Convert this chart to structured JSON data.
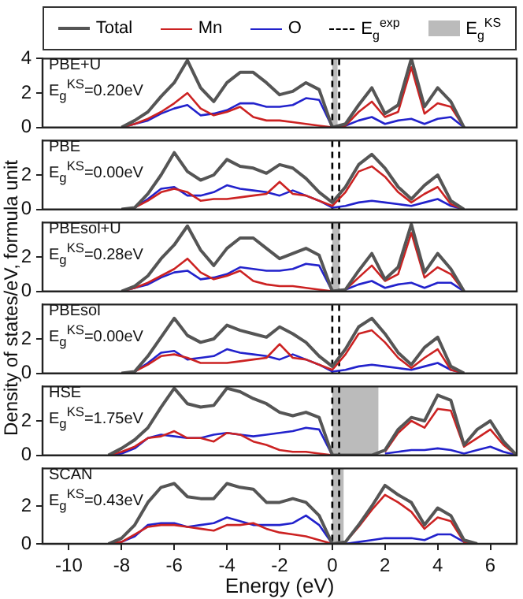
{
  "chart_data": [
    {
      "type": "line",
      "title": "PBE+U",
      "annotations": [
        "E$_{g}$$^{KS}$=0.20eV"
      ],
      "ylabel": "Density of states/eV, formula unit",
      "legend": "top",
      "tick_labels": "y",
      "grid": false,
      "marker": "none",
      "xlim": [
        -11,
        7
      ],
      "xticks": [
        -10,
        -8,
        -6,
        -4,
        -2,
        0,
        2,
        4,
        6
      ],
      "ylim": [
        0,
        4
      ],
      "yticks": [
        0,
        2,
        4
      ],
      "x": [
        -8,
        -7.5,
        -7,
        -6.5,
        -6,
        -5.5,
        -5,
        -4.5,
        -4,
        -3.5,
        -3,
        -2.5,
        -2,
        -1.5,
        -1,
        -0.5,
        0,
        0.5,
        1,
        1.5,
        2,
        2.5,
        3,
        3.5,
        4,
        4.5,
        5
      ],
      "series": [
        {
          "name": "Total",
          "color": "#555555",
          "values": [
            0,
            0.4,
            0.9,
            1.8,
            2.6,
            3.9,
            2.3,
            1.5,
            2.6,
            3.2,
            3.2,
            2.6,
            1.9,
            2.1,
            2.6,
            2.2,
            0,
            0.2,
            1.3,
            2.3,
            0.8,
            1.3,
            4.0,
            1.2,
            2.3,
            1.5,
            0
          ]
        },
        {
          "name": "Mn",
          "color": "#cc2222",
          "values": [
            0,
            0.2,
            0.5,
            0.9,
            1.4,
            2.0,
            1.1,
            0.7,
            0.9,
            1.2,
            0.6,
            0.4,
            0.4,
            0.3,
            0.2,
            0.1,
            0,
            0.1,
            0.9,
            1.5,
            0.6,
            0.9,
            3.5,
            0.8,
            1.4,
            1.2,
            0
          ]
        },
        {
          "name": "O",
          "color": "#2222cc",
          "values": [
            0,
            0.2,
            0.4,
            0.8,
            1.1,
            1.3,
            0.7,
            0.8,
            1.0,
            1.4,
            1.4,
            1.2,
            1.2,
            1.3,
            1.7,
            1.6,
            0,
            0.1,
            0.4,
            0.6,
            0.2,
            0.4,
            0.5,
            0.2,
            0.5,
            0.6,
            0
          ]
        }
      ],
      "ref_lines": [
        {
          "axis": "x",
          "value": 0,
          "label": "E$_{g}$$^{exp}$",
          "color": "#000000",
          "line_style": "dashed"
        },
        {
          "axis": "x",
          "value": 0.26,
          "color": "#000000",
          "line_style": "dashed"
        }
      ],
      "bands": [
        {
          "axis": "x",
          "from": 0,
          "to": 0.2,
          "label": "E$_{g}$$^{KS}$",
          "color": "#bbbbbb"
        }
      ]
    },
    {
      "type": "line",
      "title": "PBE",
      "annotations": [
        "E$_{g}$$^{KS}$=0.00eV"
      ],
      "tick_labels": "y",
      "grid": false,
      "marker": "none",
      "xlim": [
        -11,
        7
      ],
      "xticks": [
        -10,
        -8,
        -6,
        -4,
        -2,
        0,
        2,
        4,
        6
      ],
      "ylim": [
        0,
        4
      ],
      "yticks": [
        0,
        2
      ],
      "x": [
        -8,
        -7.5,
        -7,
        -6.5,
        -6,
        -5.5,
        -5,
        -4.5,
        -4,
        -3.5,
        -3,
        -2.5,
        -2,
        -1.5,
        -1,
        -0.5,
        0,
        0.5,
        1,
        1.5,
        2,
        2.5,
        3,
        3.5,
        4,
        4.5,
        5
      ],
      "series": [
        {
          "color": "#555555",
          "values": [
            0,
            0.1,
            0.9,
            2.0,
            3.3,
            2.2,
            1.7,
            2.0,
            2.9,
            2.5,
            2.4,
            2.1,
            2.6,
            2.4,
            1.8,
            1.0,
            0.4,
            1.3,
            2.6,
            3.2,
            2.4,
            1.3,
            0.6,
            1.4,
            2.0,
            0.5,
            0
          ]
        },
        {
          "color": "#cc2222",
          "values": [
            0,
            0.1,
            0.5,
            1.0,
            1.2,
            1.0,
            0.5,
            0.6,
            0.6,
            0.7,
            0.8,
            0.9,
            1.6,
            0.9,
            0.8,
            0.5,
            0.2,
            1.0,
            2.2,
            2.5,
            1.9,
            1.0,
            0.4,
            0.9,
            1.3,
            0.3,
            0
          ]
        },
        {
          "color": "#2222cc",
          "values": [
            0,
            0.1,
            0.6,
            1.2,
            1.3,
            0.8,
            0.8,
            1.0,
            1.4,
            1.2,
            1.1,
            1.0,
            0.8,
            1.1,
            0.8,
            0.5,
            0.1,
            0.2,
            0.4,
            0.5,
            0.4,
            0.3,
            0.2,
            0.4,
            0.6,
            0.2,
            0
          ]
        }
      ],
      "ref_lines": [
        {
          "axis": "x",
          "value": 0,
          "color": "#000000",
          "line_style": "dashed"
        },
        {
          "axis": "x",
          "value": 0.26,
          "color": "#000000",
          "line_style": "dashed"
        }
      ]
    },
    {
      "type": "line",
      "title": "PBEsol+U",
      "annotations": [
        "E$_{g}$$^{KS}$=0.28eV"
      ],
      "tick_labels": "y",
      "grid": false,
      "marker": "none",
      "xlim": [
        -11,
        7
      ],
      "xticks": [
        -10,
        -8,
        -6,
        -4,
        -2,
        0,
        2,
        4,
        6
      ],
      "ylim": [
        0,
        4
      ],
      "yticks": [
        0,
        2
      ],
      "x": [
        -8,
        -7.5,
        -7,
        -6.5,
        -6,
        -5.5,
        -5,
        -4.5,
        -4,
        -3.5,
        -3,
        -2.5,
        -2,
        -1.5,
        -1,
        -0.5,
        0,
        0.5,
        1,
        1.5,
        2,
        2.5,
        3,
        3.5,
        4,
        4.5,
        5
      ],
      "series": [
        {
          "color": "#555555",
          "values": [
            0,
            0.3,
            0.9,
            1.9,
            2.7,
            3.8,
            2.4,
            1.5,
            2.5,
            3.1,
            3.1,
            2.5,
            1.9,
            2.2,
            2.5,
            2.1,
            0,
            0.1,
            1.2,
            2.2,
            0.7,
            1.4,
            3.9,
            1.1,
            2.2,
            1.3,
            0
          ]
        },
        {
          "color": "#cc2222",
          "values": [
            0,
            0.2,
            0.5,
            0.9,
            1.3,
            1.9,
            1.1,
            0.7,
            0.9,
            1.2,
            0.6,
            0.4,
            0.3,
            0.3,
            0.2,
            0.1,
            0,
            0.1,
            0.8,
            1.5,
            0.6,
            1.0,
            3.4,
            0.8,
            1.4,
            1.0,
            0
          ]
        },
        {
          "color": "#2222cc",
          "values": [
            0,
            0.2,
            0.4,
            0.8,
            1.1,
            1.2,
            0.7,
            0.8,
            1.0,
            1.4,
            1.3,
            1.2,
            1.2,
            1.3,
            1.6,
            1.5,
            0,
            0.1,
            0.4,
            0.6,
            0.2,
            0.4,
            0.5,
            0.2,
            0.5,
            0.5,
            0
          ]
        }
      ],
      "ref_lines": [
        {
          "axis": "x",
          "value": 0,
          "color": "#000000",
          "line_style": "dashed"
        },
        {
          "axis": "x",
          "value": 0.26,
          "color": "#000000",
          "line_style": "dashed"
        }
      ],
      "bands": [
        {
          "axis": "x",
          "from": 0,
          "to": 0.28,
          "color": "#bbbbbb"
        }
      ]
    },
    {
      "type": "line",
      "title": "PBEsol",
      "annotations": [
        "E$_{g}$$^{KS}$=0.00eV"
      ],
      "tick_labels": "y",
      "grid": false,
      "marker": "none",
      "xlim": [
        -11,
        7
      ],
      "xticks": [
        -10,
        -8,
        -6,
        -4,
        -2,
        0,
        2,
        4,
        6
      ],
      "ylim": [
        0,
        4
      ],
      "yticks": [
        0,
        2
      ],
      "x": [
        -8,
        -7.5,
        -7,
        -6.5,
        -6,
        -5.5,
        -5,
        -4.5,
        -4,
        -3.5,
        -3,
        -2.5,
        -2,
        -1.5,
        -1,
        -0.5,
        0,
        0.5,
        1,
        1.5,
        2,
        2.5,
        3,
        3.5,
        4,
        4.5,
        5
      ],
      "series": [
        {
          "color": "#555555",
          "values": [
            0,
            0.1,
            1.0,
            2.1,
            3.2,
            2.2,
            1.8,
            2.0,
            2.8,
            2.5,
            2.3,
            2.1,
            2.7,
            2.3,
            1.8,
            1.0,
            0.4,
            1.4,
            2.7,
            3.2,
            2.3,
            1.2,
            0.5,
            1.5,
            2.1,
            0.4,
            0
          ]
        },
        {
          "color": "#cc2222",
          "values": [
            0,
            0.1,
            0.5,
            1.0,
            1.1,
            0.9,
            0.6,
            0.6,
            0.6,
            0.7,
            0.8,
            0.9,
            1.7,
            0.9,
            0.8,
            0.5,
            0.2,
            1.1,
            2.3,
            2.5,
            1.8,
            0.9,
            0.3,
            0.9,
            1.4,
            0.2,
            0
          ]
        },
        {
          "color": "#2222cc",
          "values": [
            0,
            0.1,
            0.6,
            1.2,
            1.3,
            0.8,
            0.9,
            1.0,
            1.4,
            1.2,
            1.1,
            1.0,
            0.8,
            1.1,
            0.8,
            0.5,
            0.1,
            0.2,
            0.4,
            0.5,
            0.4,
            0.3,
            0.2,
            0.4,
            0.6,
            0.2,
            0
          ]
        }
      ],
      "ref_lines": [
        {
          "axis": "x",
          "value": 0,
          "color": "#000000",
          "line_style": "dashed"
        },
        {
          "axis": "x",
          "value": 0.26,
          "color": "#000000",
          "line_style": "dashed"
        }
      ]
    },
    {
      "type": "line",
      "title": "HSE",
      "annotations": [
        "E$_{g}$$^{KS}$=1.75eV"
      ],
      "tick_labels": "y",
      "grid": false,
      "marker": "none",
      "xlim": [
        -11,
        7
      ],
      "xticks": [
        -10,
        -8,
        -6,
        -4,
        -2,
        0,
        2,
        4,
        6
      ],
      "ylim": [
        0,
        4
      ],
      "yticks": [
        0,
        2
      ],
      "x": [
        -8.5,
        -8,
        -7.5,
        -7,
        -6.5,
        -6,
        -5.5,
        -5,
        -4.5,
        -4,
        -3.5,
        -3,
        -2.5,
        -2,
        -1.5,
        -1,
        -0.5,
        0,
        1.5,
        2,
        2.5,
        3,
        3.5,
        4,
        4.5,
        5,
        5.5,
        6,
        6.5,
        7
      ],
      "series": [
        {
          "color": "#555555",
          "values": [
            0,
            0.4,
            0.9,
            1.6,
            2.8,
            3.9,
            3.0,
            2.8,
            2.9,
            3.9,
            3.7,
            3.3,
            3.0,
            2.5,
            2.3,
            2.5,
            2.2,
            0,
            0,
            0.3,
            1.5,
            2.2,
            2.0,
            3.5,
            3.2,
            0.6,
            1.5,
            2.0,
            0.8,
            0
          ]
        },
        {
          "color": "#cc2222",
          "values": [
            0,
            0.2,
            0.5,
            1.0,
            1.1,
            1.4,
            1.0,
            1.0,
            0.8,
            1.3,
            1.2,
            0.8,
            0.6,
            0.3,
            0.2,
            0.2,
            0.1,
            0,
            null,
            0.2,
            1.3,
            2.0,
            1.6,
            2.7,
            2.6,
            0.5,
            1.0,
            1.5,
            0.6,
            0
          ]
        },
        {
          "color": "#2222cc",
          "values": [
            0,
            0.1,
            0.4,
            1.0,
            1.2,
            1.1,
            1.0,
            1.0,
            1.2,
            1.3,
            1.2,
            1.1,
            1.2,
            1.3,
            1.4,
            1.6,
            1.5,
            0,
            null,
            0.1,
            0.2,
            0.3,
            0.3,
            0.4,
            0.3,
            0.1,
            0.3,
            0.5,
            0.2,
            0
          ]
        }
      ],
      "ref_lines": [
        {
          "axis": "x",
          "value": 0,
          "color": "#000000",
          "line_style": "dashed"
        },
        {
          "axis": "x",
          "value": 0.26,
          "color": "#000000",
          "line_style": "dashed"
        }
      ],
      "bands": [
        {
          "axis": "x",
          "from": 0,
          "to": 1.75,
          "color": "#bbbbbb"
        }
      ]
    },
    {
      "type": "line",
      "title": "SCAN",
      "annotations": [
        "E$_{g}$$^{KS}$=0.43eV"
      ],
      "xlabel": "Energy (eV)",
      "grid": false,
      "marker": "none",
      "xlim": [
        -11,
        7
      ],
      "xticks": [
        -10,
        -8,
        -6,
        -4,
        -2,
        0,
        2,
        4,
        6
      ],
      "ylim": [
        0,
        4
      ],
      "yticks": [
        0,
        2
      ],
      "x": [
        -8.5,
        -8,
        -7.5,
        -7,
        -6.5,
        -6,
        -5.5,
        -5,
        -4.5,
        -4,
        -3.5,
        -3,
        -2.5,
        -2,
        -1.5,
        -1,
        -0.5,
        0,
        0.5,
        1,
        1.5,
        2,
        2.5,
        3,
        3.5,
        4,
        4.5,
        5,
        5.5
      ],
      "series": [
        {
          "color": "#555555",
          "values": [
            0,
            0.3,
            1.0,
            2.2,
            3.0,
            3.2,
            2.5,
            2.4,
            2.4,
            3.2,
            3.0,
            2.9,
            2.2,
            2.2,
            2.4,
            2.2,
            1.5,
            0,
            0.1,
            1.0,
            2.0,
            3.1,
            2.6,
            2.2,
            1.0,
            1.9,
            1.5,
            0.2,
            0
          ]
        },
        {
          "color": "#cc2222",
          "values": [
            0,
            0.1,
            0.5,
            0.9,
            1.0,
            1.0,
            0.9,
            0.8,
            0.7,
            1.0,
            1.0,
            1.1,
            0.8,
            0.6,
            0.5,
            0.4,
            0.2,
            0,
            0.1,
            0.9,
            1.8,
            2.6,
            2.2,
            1.7,
            0.8,
            1.4,
            1.2,
            0.1,
            0
          ]
        },
        {
          "color": "#2222cc",
          "values": [
            0,
            0.1,
            0.4,
            1.0,
            1.1,
            1.1,
            0.9,
            1.0,
            1.1,
            1.4,
            1.2,
            1.0,
            1.0,
            1.0,
            1.1,
            1.5,
            1.0,
            0,
            0,
            0.1,
            0.2,
            0.3,
            0.3,
            0.3,
            0.2,
            0.5,
            0.5,
            0.1,
            0
          ]
        }
      ],
      "ref_lines": [
        {
          "axis": "x",
          "value": 0,
          "color": "#000000",
          "line_style": "dashed"
        },
        {
          "axis": "x",
          "value": 0.26,
          "color": "#000000",
          "line_style": "dashed"
        }
      ],
      "bands": [
        {
          "axis": "x",
          "from": 0,
          "to": 0.43,
          "color": "#bbbbbb"
        }
      ]
    }
  ]
}
